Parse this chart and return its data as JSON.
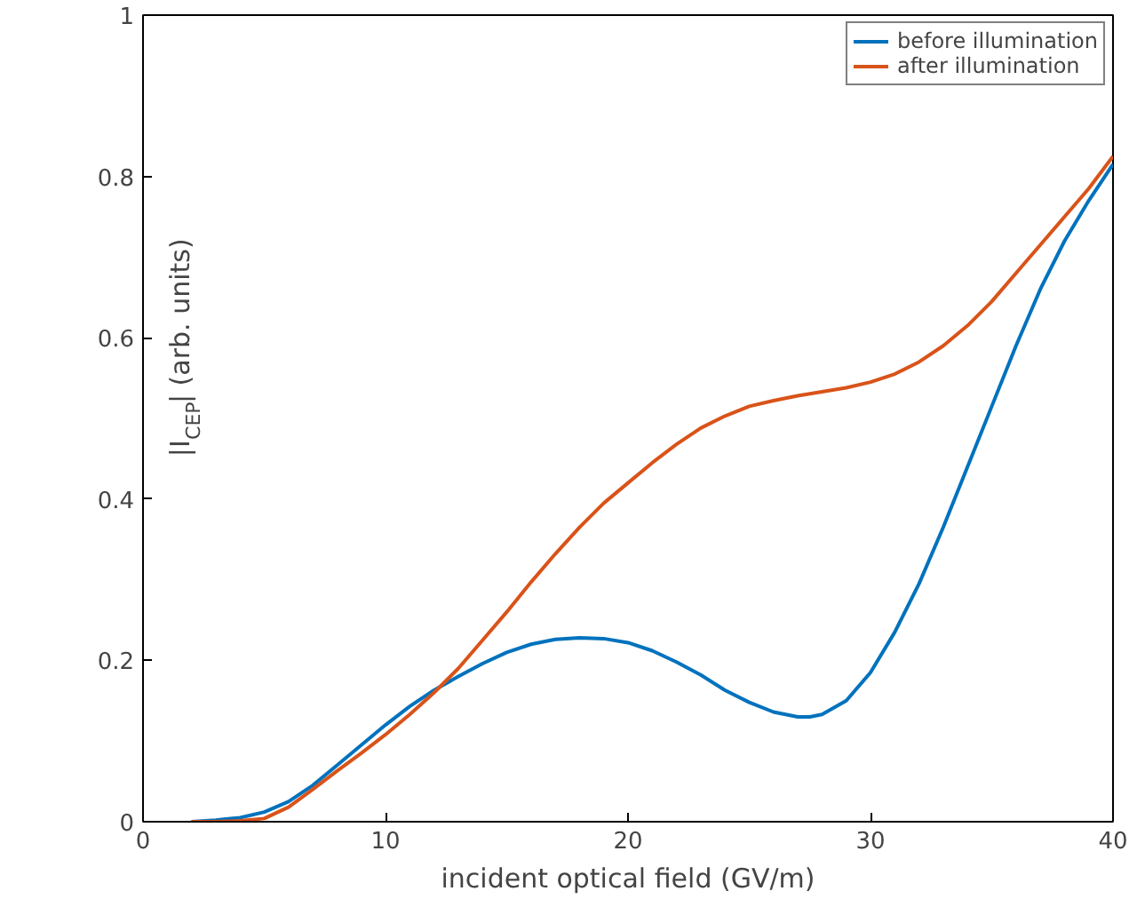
{
  "chart_data": {
    "type": "line",
    "xlabel": "incident optical field (GV/m)",
    "ylabel": "|I$_{CEP}$| (arb. units)",
    "xlim": [
      0,
      40
    ],
    "ylim": [
      0,
      1
    ],
    "xticks": [
      0,
      10,
      20,
      30,
      40
    ],
    "yticks": [
      0,
      0.2,
      0.4,
      0.6,
      0.8,
      1
    ],
    "grid": false,
    "legend": "top right",
    "line_style": "solid",
    "series": [
      {
        "name": "before illumination",
        "color": "#0072bd",
        "x": [
          2,
          3,
          4,
          5,
          6,
          7,
          8,
          9,
          10,
          11,
          12,
          13,
          14,
          15,
          16,
          17,
          18,
          19,
          20,
          21,
          22,
          23,
          24,
          25,
          26,
          27,
          27.5,
          28,
          29,
          30,
          31,
          32,
          33,
          34,
          35,
          36,
          37,
          38,
          39,
          40
        ],
        "values": [
          0,
          0.002,
          0.005,
          0.012,
          0.025,
          0.045,
          0.07,
          0.095,
          0.12,
          0.143,
          0.163,
          0.18,
          0.196,
          0.21,
          0.22,
          0.226,
          0.228,
          0.227,
          0.222,
          0.212,
          0.198,
          0.182,
          0.163,
          0.148,
          0.136,
          0.13,
          0.13,
          0.133,
          0.15,
          0.185,
          0.235,
          0.295,
          0.365,
          0.44,
          0.515,
          0.59,
          0.66,
          0.72,
          0.77,
          0.815
        ]
      },
      {
        "name": "after illumination",
        "color": "#d95319",
        "x": [
          2,
          3,
          4,
          5,
          6,
          7,
          8,
          9,
          10,
          11,
          12,
          13,
          14,
          15,
          16,
          17,
          18,
          19,
          20,
          21,
          22,
          23,
          24,
          25,
          26,
          27,
          28,
          29,
          30,
          31,
          32,
          33,
          34,
          35,
          36,
          37,
          38,
          39,
          40
        ],
        "values": [
          0,
          0,
          0.001,
          0.004,
          0.018,
          0.04,
          0.063,
          0.085,
          0.108,
          0.133,
          0.16,
          0.19,
          0.225,
          0.26,
          0.297,
          0.332,
          0.365,
          0.395,
          0.42,
          0.445,
          0.468,
          0.488,
          0.503,
          0.515,
          0.522,
          0.528,
          0.533,
          0.538,
          0.545,
          0.555,
          0.57,
          0.59,
          0.615,
          0.645,
          0.68,
          0.715,
          0.75,
          0.785,
          0.825
        ]
      }
    ]
  }
}
